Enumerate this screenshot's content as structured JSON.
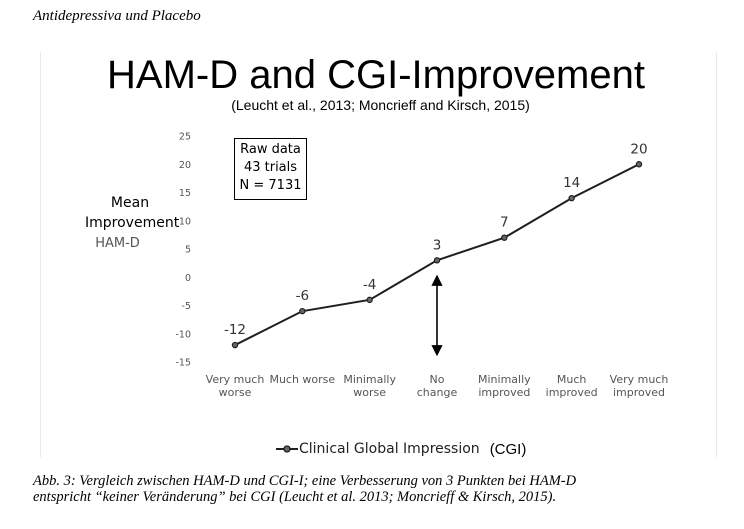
{
  "running_head": "Antidepressiva und Placebo",
  "chart_data": {
    "type": "line",
    "title": "HAM-D and CGI-Improvement",
    "subtitle": "(Leucht et al., 2013; Moncrieff and Kirsch, 2015)",
    "ylabel": "Mean Improvement",
    "ylabel_sub": "HAM-D",
    "ylim": [
      -15,
      25
    ],
    "yticks": [
      25,
      20,
      15,
      10,
      5,
      0,
      -5,
      -10,
      -15
    ],
    "categories": [
      [
        "Very much",
        "worse"
      ],
      [
        "Much worse"
      ],
      [
        "Minimally",
        "worse"
      ],
      [
        "No",
        "change"
      ],
      [
        "Minimally",
        "improved"
      ],
      [
        "Much",
        "improved"
      ],
      [
        "Very much",
        "improved"
      ]
    ],
    "series": [
      {
        "name": "Clinical Global Impression",
        "values": [
          -12,
          -6,
          -4,
          3,
          7,
          14,
          20
        ]
      }
    ],
    "data_labels": [
      "-12",
      "-6",
      "-4",
      "3",
      "7",
      "14",
      "20"
    ],
    "annotation_lines": [
      "Raw data",
      "43 trials",
      "N = 7131"
    ],
    "legend_suffix": "(CGI)",
    "legend_position": "bottom",
    "grid": false
  },
  "caption": [
    "Abb. 3: Vergleich zwischen HAM-D und CGI-I; eine Verbesserung von 3 Punkten bei HAM-D",
    "entspricht “keiner Veränderung” bei CGI (Leucht et al. 2013; Moncrieff & Kirsch, 2015)."
  ]
}
